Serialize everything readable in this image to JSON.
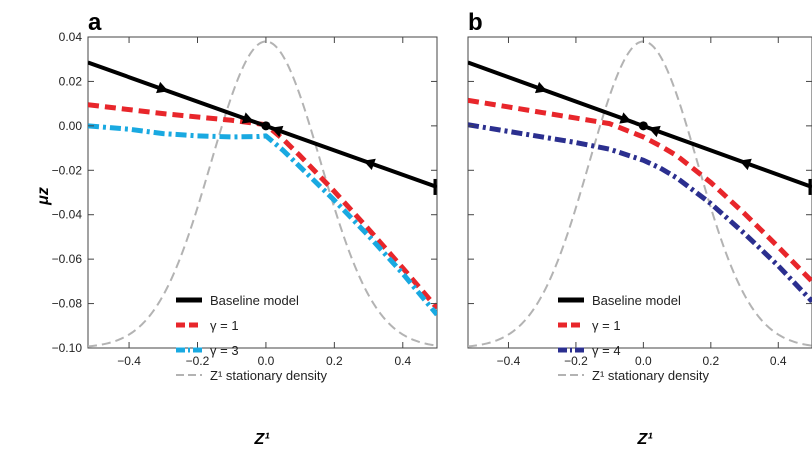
{
  "chart_data": [
    {
      "type": "line",
      "panel_label": "a",
      "title": "",
      "xlabel": "Z¹",
      "ylabel": "μz",
      "xlim": [
        -0.52,
        0.5
      ],
      "ylim": [
        -0.1,
        0.04
      ],
      "xticks": [
        -0.4,
        -0.2,
        0.0,
        0.2,
        0.4
      ],
      "xtick_labels": [
        "−0.4",
        "−0.2",
        "0.0",
        "0.2",
        "0.4"
      ],
      "yticks": [
        0.04,
        0.02,
        0.0,
        -0.02,
        -0.04,
        -0.06,
        -0.08,
        -0.1
      ],
      "ytick_labels": [
        "0.04",
        "0.02",
        "0.00",
        "−0.02",
        "−0.04",
        "−0.06",
        "−0.08",
        "−0.10"
      ],
      "grid": false,
      "legend_position": "bottom-center",
      "series": [
        {
          "name": "Baseline model",
          "color": "#000000",
          "style": "solid",
          "x": [
            -0.52,
            0.5
          ],
          "y": [
            0.0285,
            -0.0275
          ],
          "arrows_at_x": [
            -0.3,
            -0.05,
            0.3,
            0.03
          ]
        },
        {
          "name": "γ = 1",
          "color": "#e8262b",
          "style": "dashed",
          "x": [
            -0.52,
            -0.3,
            -0.1,
            0.0,
            0.05,
            0.1,
            0.2,
            0.3,
            0.4,
            0.5
          ],
          "y": [
            0.0095,
            0.0055,
            0.0025,
            0.0005,
            -0.006,
            -0.0135,
            -0.0295,
            -0.0465,
            -0.064,
            -0.082
          ]
        },
        {
          "name": "γ = 3",
          "color": "#19a9e1",
          "style": "dashdot",
          "x": [
            -0.52,
            -0.4,
            -0.3,
            -0.2,
            -0.1,
            -0.02,
            0.0,
            0.05,
            0.1,
            0.2,
            0.3,
            0.4,
            0.5
          ],
          "y": [
            0.0,
            -0.0015,
            -0.0035,
            -0.0045,
            -0.005,
            -0.0048,
            -0.0045,
            -0.011,
            -0.0185,
            -0.0335,
            -0.0495,
            -0.0665,
            -0.085
          ]
        },
        {
          "name": "Z¹ stationary density",
          "color": "#b3b3b3",
          "style": "dashed",
          "density_peak_x": 0.0,
          "density_sd": 0.16
        }
      ],
      "points": [
        {
          "x": 0.0,
          "y": 0.0
        }
      ]
    },
    {
      "type": "line",
      "panel_label": "b",
      "title": "",
      "xlabel": "Z¹",
      "ylabel": "",
      "xlim": [
        -0.52,
        0.5
      ],
      "ylim": [
        -0.1,
        0.04
      ],
      "xticks": [
        -0.4,
        -0.2,
        0.0,
        0.2,
        0.4
      ],
      "xtick_labels": [
        "−0.4",
        "−0.2",
        "0.0",
        "0.2",
        "0.4"
      ],
      "grid": false,
      "legend_position": "bottom-center",
      "series": [
        {
          "name": "Baseline model",
          "color": "#000000",
          "style": "solid",
          "x": [
            -0.52,
            0.5
          ],
          "y": [
            0.0285,
            -0.0275
          ],
          "arrows_at_x": [
            -0.3,
            -0.05,
            0.3,
            0.03
          ]
        },
        {
          "name": "γ = 1",
          "color": "#e8262b",
          "style": "dashed",
          "x": [
            -0.52,
            -0.4,
            -0.3,
            -0.2,
            -0.1,
            0.0,
            0.05,
            0.1,
            0.2,
            0.3,
            0.4,
            0.5
          ],
          "y": [
            0.0115,
            0.0085,
            0.006,
            0.0035,
            0.001,
            -0.005,
            -0.009,
            -0.0135,
            -0.0255,
            -0.0395,
            -0.0545,
            -0.07
          ]
        },
        {
          "name": "γ = 4",
          "color": "#2b2f8f",
          "style": "dashdot",
          "x": [
            -0.52,
            -0.4,
            -0.3,
            -0.2,
            -0.1,
            0.0,
            0.05,
            0.1,
            0.2,
            0.3,
            0.4,
            0.5
          ],
          "y": [
            0.0005,
            -0.0025,
            -0.005,
            -0.0075,
            -0.0105,
            -0.0155,
            -0.019,
            -0.0235,
            -0.035,
            -0.0485,
            -0.063,
            -0.079
          ]
        },
        {
          "name": "Z¹ stationary density",
          "color": "#b3b3b3",
          "style": "dashed",
          "density_peak_x": 0.0,
          "density_sd": 0.16
        }
      ],
      "points": [
        {
          "x": 0.0,
          "y": 0.0
        }
      ]
    }
  ]
}
